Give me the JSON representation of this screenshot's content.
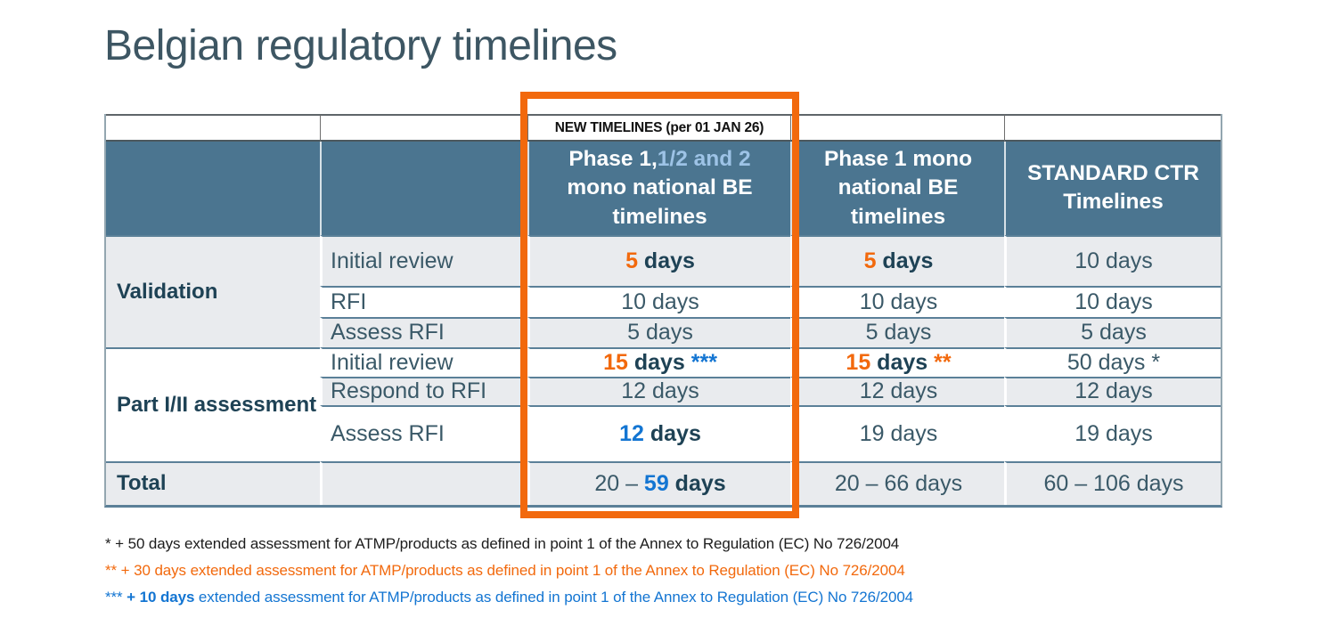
{
  "title": "Belgian regulatory timelines",
  "table": {
    "new_timelines_label": "NEW TIMELINES (per 01 JAN 26)",
    "header": {
      "col3_part1": "Phase 1,",
      "col3_part2": "1/2 and 2",
      "col3_part3": " mono national BE timelines",
      "col4": "Phase 1 mono national BE timelines",
      "col5": "STANDARD CTR Timelines"
    },
    "rows": [
      {
        "group": "Validation",
        "group_span": 3,
        "group_shade": true,
        "shade": true,
        "sub": "Initial review",
        "cells": [
          [
            {
              "t": "5",
              "s": "o"
            },
            {
              "t": " days",
              "s": "b"
            }
          ],
          [
            {
              "t": "5",
              "s": "o"
            },
            {
              "t": " days",
              "s": "b"
            }
          ],
          [
            {
              "t": "10 days",
              "s": "n"
            }
          ]
        ]
      },
      {
        "shade": false,
        "sub": "RFI",
        "cells": [
          [
            {
              "t": "10 days",
              "s": "n"
            }
          ],
          [
            {
              "t": "10 days",
              "s": "n"
            }
          ],
          [
            {
              "t": "10 days",
              "s": "n"
            }
          ]
        ]
      },
      {
        "shade": true,
        "sub": "Assess RFI",
        "cells": [
          [
            {
              "t": "5 days",
              "s": "n"
            }
          ],
          [
            {
              "t": "5 days",
              "s": "n"
            }
          ],
          [
            {
              "t": "5 days",
              "s": "n"
            }
          ]
        ]
      },
      {
        "group": "Part I/II assessment",
        "group_span": 3,
        "group_shade": false,
        "shade": false,
        "sub": "Initial review",
        "cells": [
          [
            {
              "t": "15",
              "s": "o"
            },
            {
              "t": " days ",
              "s": "b"
            },
            {
              "t": "***",
              "s": "bl"
            }
          ],
          [
            {
              "t": "15",
              "s": "o"
            },
            {
              "t": " days ",
              "s": "b"
            },
            {
              "t": "**",
              "s": "o"
            }
          ],
          [
            {
              "t": "50 days *",
              "s": "n"
            }
          ]
        ]
      },
      {
        "shade": true,
        "sub": "Respond to RFI",
        "cells": [
          [
            {
              "t": "12 days",
              "s": "n"
            }
          ],
          [
            {
              "t": "12 days",
              "s": "n"
            }
          ],
          [
            {
              "t": "12 days",
              "s": "n"
            }
          ]
        ]
      },
      {
        "shade": false,
        "sub": "Assess RFI",
        "cells": [
          [
            {
              "t": "12",
              "s": "bl"
            },
            {
              "t": " days",
              "s": "b"
            }
          ],
          [
            {
              "t": "19 days",
              "s": "n"
            }
          ],
          [
            {
              "t": "19 days",
              "s": "n"
            }
          ]
        ]
      },
      {
        "group": "Total",
        "group_span": 1,
        "group_shade": true,
        "shade": true,
        "sub": "",
        "cells": [
          [
            {
              "t": "20 – ",
              "s": "n"
            },
            {
              "t": "59",
              "s": "bl"
            },
            {
              "t": " days",
              "s": "b"
            }
          ],
          [
            {
              "t": "20 – 66 days",
              "s": "n"
            }
          ],
          [
            {
              "t": "60 – 106 days",
              "s": "n"
            }
          ]
        ]
      }
    ]
  },
  "footnotes": [
    {
      "color": "dark",
      "segments": [
        {
          "t": "* + 50 days extended assessment for ATMP/products as defined in point 1 of the Annex to Regulation (EC) No 726/2004",
          "bold": false
        }
      ]
    },
    {
      "color": "orange",
      "segments": [
        {
          "t": "** + 30 days extended assessment for ATMP/products as defined in point 1 of the Annex to Regulation (EC) No 726/2004",
          "bold": false
        }
      ]
    },
    {
      "color": "blue",
      "segments": [
        {
          "t": "*** ",
          "bold": false
        },
        {
          "t": "+ 10 days",
          "bold": true
        },
        {
          "t": " extended assessment for ATMP/products as defined in point 1 of the Annex to Regulation (EC) No 726/2004",
          "bold": false
        }
      ]
    }
  ],
  "colors": {
    "header_bg": "#4B7590",
    "row_shade": "#E9EBEE",
    "border_slate": "#5B8098",
    "accent_orange": "#F2690D",
    "accent_blue": "#1375D2",
    "header_lightblue": "#9DC3E6",
    "text_dark": "#1E4255",
    "text_body": "#3A5968"
  }
}
